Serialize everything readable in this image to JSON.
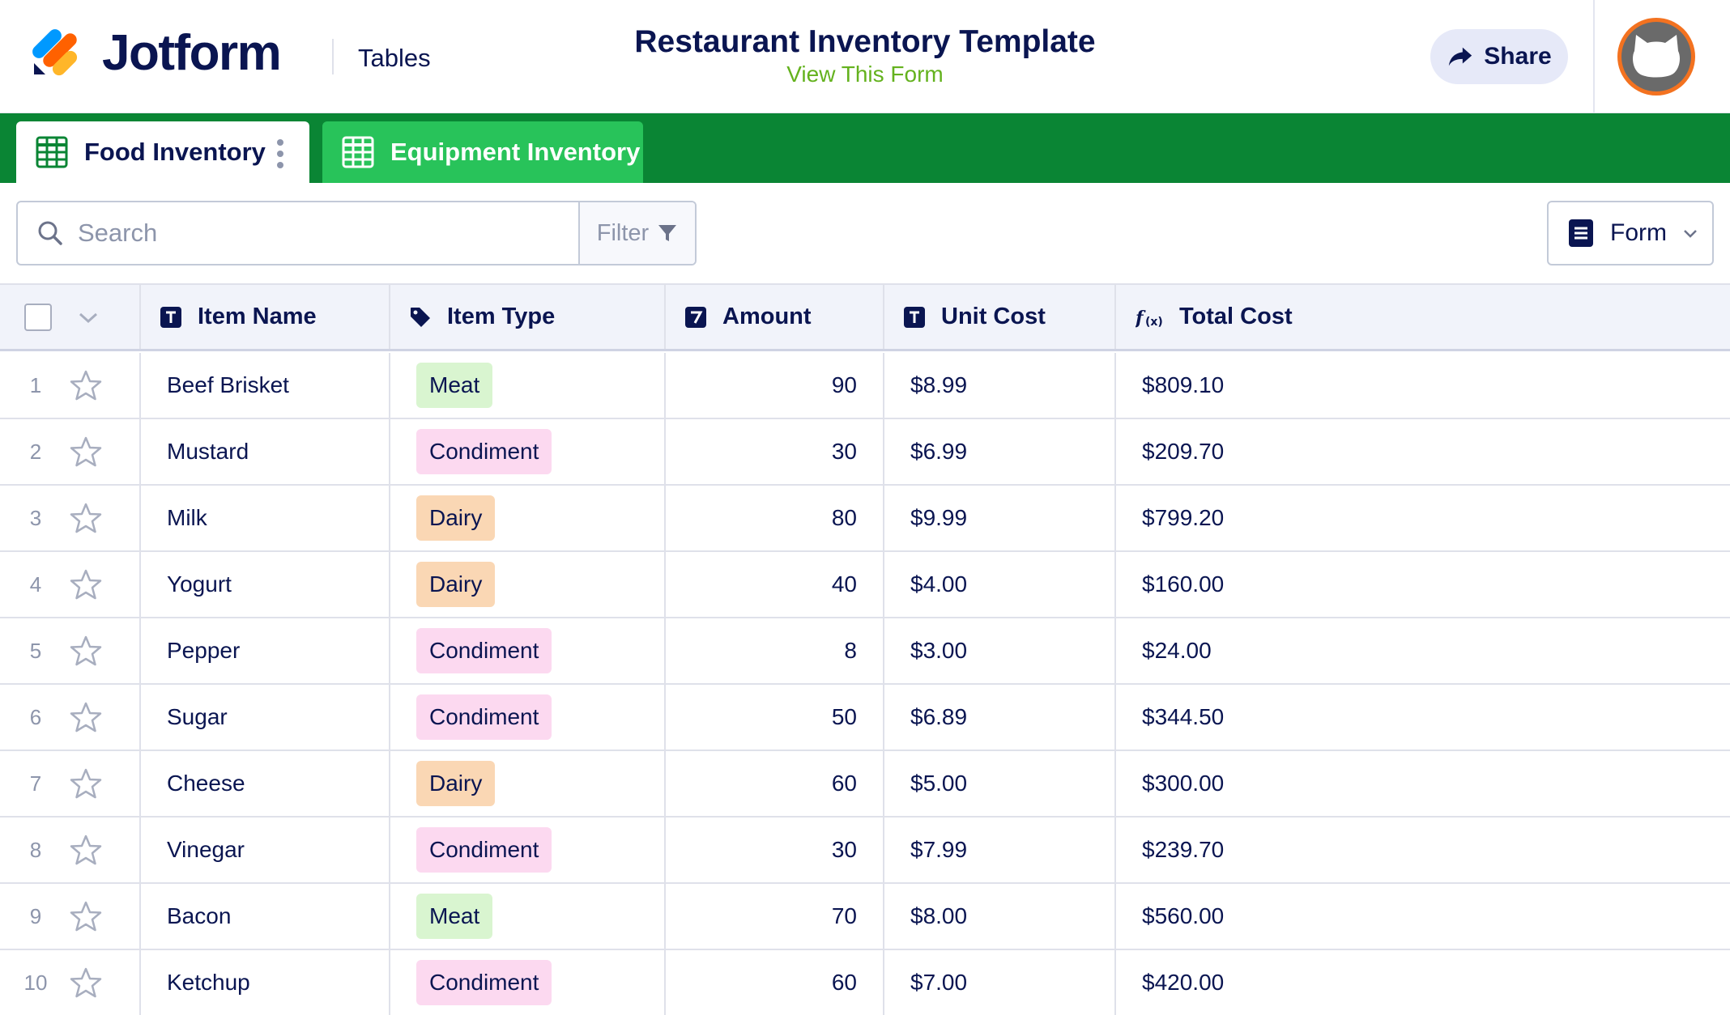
{
  "header": {
    "brand": "Jotform",
    "app_name": "Tables",
    "title": "Restaurant Inventory Template",
    "view_form_link": "View This Form",
    "share_label": "Share"
  },
  "tabs": [
    {
      "label": "Food Inventory",
      "active": true
    },
    {
      "label": "Equipment Inventory",
      "active": false
    }
  ],
  "toolbar": {
    "search_placeholder": "Search",
    "filter_label": "Filter",
    "form_label": "Form"
  },
  "table": {
    "columns": [
      {
        "label": "Item Name",
        "icon": "text-field-icon"
      },
      {
        "label": "Item Type",
        "icon": "tag-icon"
      },
      {
        "label": "Amount",
        "icon": "number-field-icon"
      },
      {
        "label": "Unit Cost",
        "icon": "text-field-icon"
      },
      {
        "label": "Total Cost",
        "icon": "formula-icon"
      }
    ],
    "rows": [
      {
        "num": "1",
        "name": "Beef Brisket",
        "type": "Meat",
        "amount": "90",
        "unit_cost": "$8.99",
        "total_cost": "$809.10"
      },
      {
        "num": "2",
        "name": "Mustard",
        "type": "Condiment",
        "amount": "30",
        "unit_cost": "$6.99",
        "total_cost": "$209.70"
      },
      {
        "num": "3",
        "name": "Milk",
        "type": "Dairy",
        "amount": "80",
        "unit_cost": "$9.99",
        "total_cost": "$799.20"
      },
      {
        "num": "4",
        "name": "Yogurt",
        "type": "Dairy",
        "amount": "40",
        "unit_cost": "$4.00",
        "total_cost": "$160.00"
      },
      {
        "num": "5",
        "name": "Pepper",
        "type": "Condiment",
        "amount": "8",
        "unit_cost": "$3.00",
        "total_cost": "$24.00"
      },
      {
        "num": "6",
        "name": "Sugar",
        "type": "Condiment",
        "amount": "50",
        "unit_cost": "$6.89",
        "total_cost": "$344.50"
      },
      {
        "num": "7",
        "name": "Cheese",
        "type": "Dairy",
        "amount": "60",
        "unit_cost": "$5.00",
        "total_cost": "$300.00"
      },
      {
        "num": "8",
        "name": "Vinegar",
        "type": "Condiment",
        "amount": "30",
        "unit_cost": "$7.99",
        "total_cost": "$239.70"
      },
      {
        "num": "9",
        "name": "Bacon",
        "type": "Meat",
        "amount": "70",
        "unit_cost": "$8.00",
        "total_cost": "$560.00"
      },
      {
        "num": "10",
        "name": "Ketchup",
        "type": "Condiment",
        "amount": "60",
        "unit_cost": "$7.00",
        "total_cost": "$420.00"
      }
    ]
  },
  "badge_colors": {
    "Meat": "#d9f5d0",
    "Condiment": "#fcd9f0",
    "Dairy": "#fad7b4"
  },
  "colors": {
    "brand_navy": "#0a1551",
    "tab_bar": "#0a8534",
    "tab_inactive": "#28c35a",
    "link_green": "#64b21e",
    "avatar_ring": "#f37220"
  }
}
